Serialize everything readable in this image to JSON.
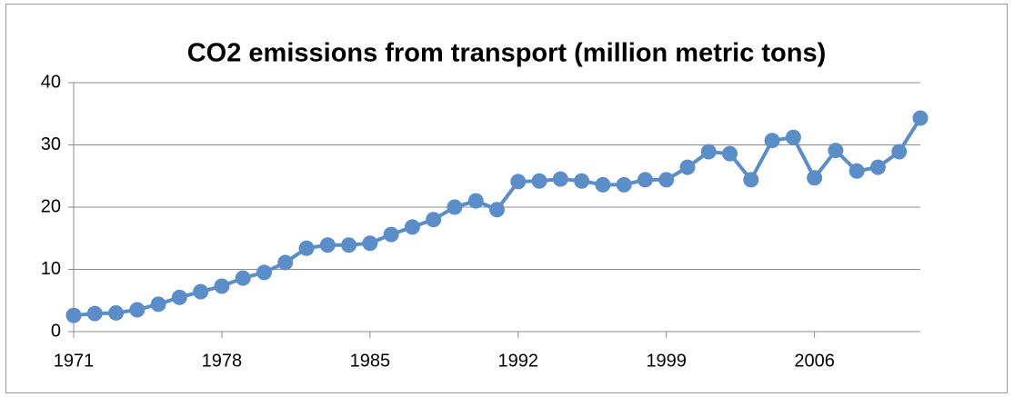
{
  "chart_data": {
    "type": "line",
    "title": "CO2 emissions from transport (million metric tons)",
    "x": [
      1971,
      1972,
      1973,
      1974,
      1975,
      1976,
      1977,
      1978,
      1979,
      1980,
      1981,
      1982,
      1983,
      1984,
      1985,
      1986,
      1987,
      1988,
      1989,
      1990,
      1991,
      1992,
      1993,
      1994,
      1995,
      1996,
      1997,
      1998,
      1999,
      2000,
      2001,
      2002,
      2003,
      2004,
      2005,
      2006,
      2007,
      2008,
      2009,
      2010,
      2011
    ],
    "series": [
      {
        "color": "#5b8ec8",
        "values": [
          2.6,
          2.9,
          3.0,
          3.5,
          4.4,
          5.5,
          6.4,
          7.3,
          8.6,
          9.5,
          11.1,
          13.4,
          13.9,
          13.9,
          14.2,
          15.6,
          16.8,
          18.0,
          20.0,
          21.0,
          19.6,
          24.1,
          24.2,
          24.5,
          24.2,
          23.6,
          23.6,
          24.4,
          24.4,
          26.4,
          28.9,
          28.6,
          24.4,
          30.7,
          31.2,
          24.7,
          29.1,
          25.8,
          26.4,
          28.9,
          34.3
        ]
      }
    ],
    "xlim": [
      1971,
      2011
    ],
    "xticks": [
      1971,
      1978,
      1985,
      1992,
      1999,
      2006
    ],
    "ylim": [
      0,
      40
    ],
    "yticks": [
      0,
      10,
      20,
      30,
      40
    ],
    "grid": true
  }
}
